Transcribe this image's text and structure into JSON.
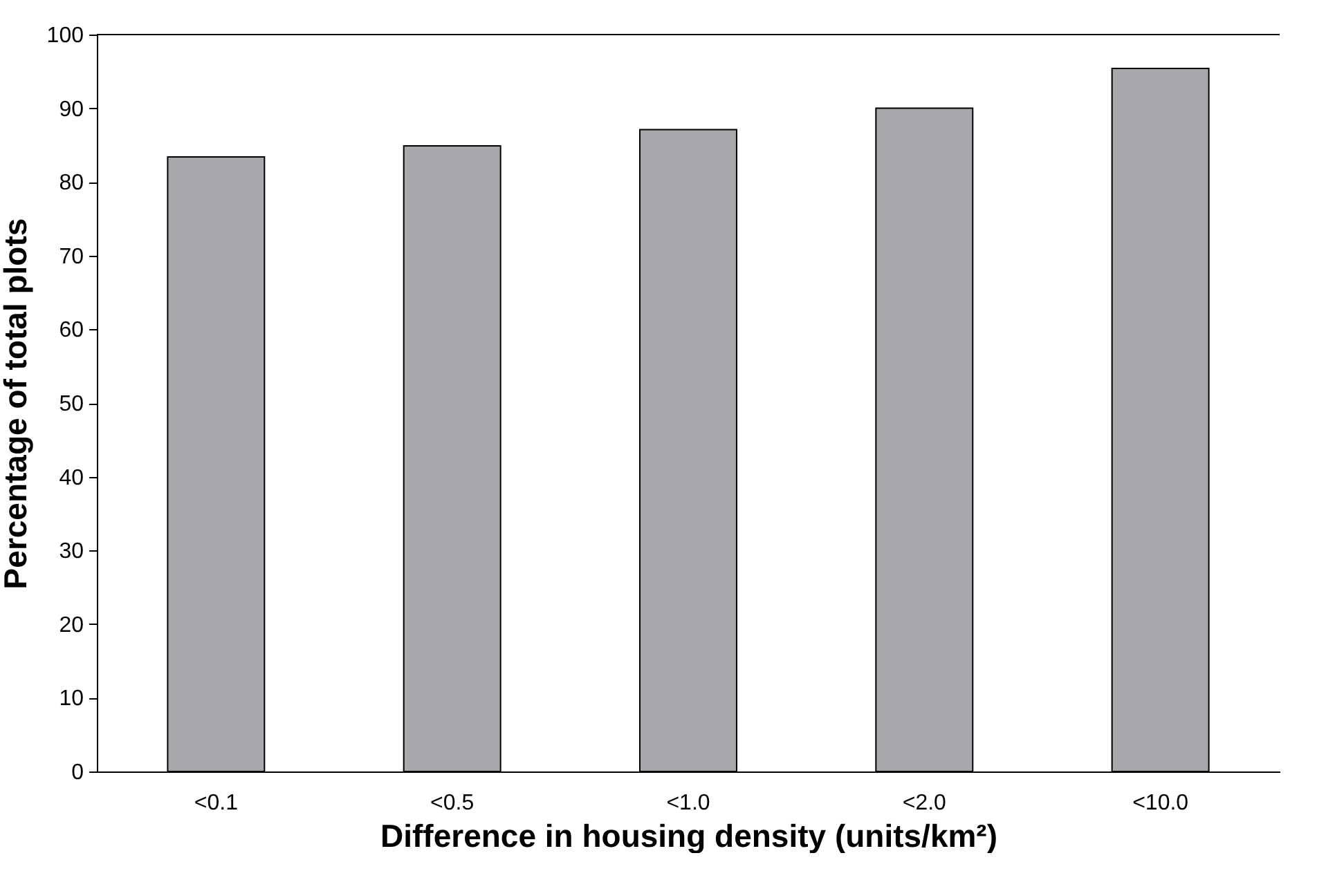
{
  "chart_data": {
    "type": "bar",
    "xlabel": "Difference in housing density (units/km²)",
    "ylabel": "Percentage of total plots",
    "categories": [
      "<0.1",
      "<0.5",
      "<1.0",
      "<2.0",
      "<10.0"
    ],
    "values": [
      83.4,
      84.9,
      87.1,
      90.0,
      95.4
    ],
    "color": "#a7a8ab",
    "ylim": [
      0,
      100
    ],
    "yticks": [
      0,
      10,
      20,
      30,
      40,
      50,
      60,
      70,
      80,
      90,
      100
    ],
    "grid": false
  }
}
